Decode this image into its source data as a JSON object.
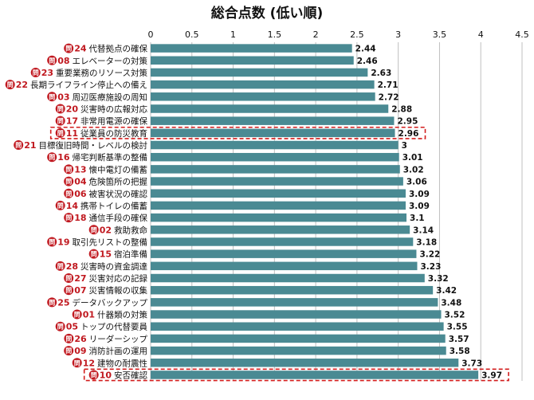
{
  "chart_data": {
    "type": "bar",
    "orientation": "horizontal",
    "title": "総合点数 (低い順)",
    "xlim": [
      0,
      4.5
    ],
    "x_ticks": [
      "0",
      "0.5",
      "1",
      "1.5",
      "2",
      "2.5",
      "3",
      "3.5",
      "4",
      "4.5"
    ],
    "grid": true,
    "bar_color": "#4a8a93",
    "badge_color": "#c0181f",
    "highlight_color": "#d21c1c",
    "badge_prefix": "問",
    "categories": [
      {
        "num": "24",
        "label": "代替拠点の確保",
        "value": 2.44,
        "value_label": "2.44",
        "highlight": false
      },
      {
        "num": "08",
        "label": "エレベーターの対策",
        "value": 2.46,
        "value_label": "2.46",
        "highlight": false
      },
      {
        "num": "23",
        "label": "重要業務のリソース対策",
        "value": 2.63,
        "value_label": "2.63",
        "highlight": false
      },
      {
        "num": "22",
        "label": "長期ライフライン停止への備え",
        "value": 2.71,
        "value_label": "2.71",
        "highlight": false
      },
      {
        "num": "03",
        "label": "周辺医療施設の周知",
        "value": 2.72,
        "value_label": "2.72",
        "highlight": false
      },
      {
        "num": "20",
        "label": "災害時の広報対応",
        "value": 2.88,
        "value_label": "2.88",
        "highlight": false
      },
      {
        "num": "17",
        "label": "非常用電源の確保",
        "value": 2.95,
        "value_label": "2.95",
        "highlight": false
      },
      {
        "num": "11",
        "label": "従業員の防災教育",
        "value": 2.96,
        "value_label": "2.96",
        "highlight": true
      },
      {
        "num": "21",
        "label": "目標復旧時間・レベルの検討",
        "value": 3.0,
        "value_label": "3",
        "highlight": false
      },
      {
        "num": "16",
        "label": "帰宅判断基準の整備",
        "value": 3.01,
        "value_label": "3.01",
        "highlight": false
      },
      {
        "num": "13",
        "label": "懐中電灯の備蓄",
        "value": 3.02,
        "value_label": "3.02",
        "highlight": false
      },
      {
        "num": "04",
        "label": "危険箇所の把握",
        "value": 3.06,
        "value_label": "3.06",
        "highlight": false
      },
      {
        "num": "06",
        "label": "被害状況の確認",
        "value": 3.09,
        "value_label": "3.09",
        "highlight": false
      },
      {
        "num": "14",
        "label": "携帯トイレの備蓄",
        "value": 3.09,
        "value_label": "3.09",
        "highlight": false
      },
      {
        "num": "18",
        "label": "通信手段の確保",
        "value": 3.1,
        "value_label": "3.1",
        "highlight": false
      },
      {
        "num": "02",
        "label": "救助救命",
        "value": 3.14,
        "value_label": "3.14",
        "highlight": false
      },
      {
        "num": "19",
        "label": "取引先リストの整備",
        "value": 3.18,
        "value_label": "3.18",
        "highlight": false
      },
      {
        "num": "15",
        "label": "宿泊準備",
        "value": 3.22,
        "value_label": "3.22",
        "highlight": false
      },
      {
        "num": "28",
        "label": "災害時の資金調達",
        "value": 3.23,
        "value_label": "3.23",
        "highlight": false
      },
      {
        "num": "27",
        "label": "災害対応の記録",
        "value": 3.32,
        "value_label": "3.32",
        "highlight": false
      },
      {
        "num": "07",
        "label": "災害情報の収集",
        "value": 3.42,
        "value_label": "3.42",
        "highlight": false
      },
      {
        "num": "25",
        "label": "データバックアップ",
        "value": 3.48,
        "value_label": "3.48",
        "highlight": false
      },
      {
        "num": "01",
        "label": "什器類の対策",
        "value": 3.52,
        "value_label": "3.52",
        "highlight": false
      },
      {
        "num": "05",
        "label": "トップの代替要員",
        "value": 3.55,
        "value_label": "3.55",
        "highlight": false
      },
      {
        "num": "26",
        "label": "リーダーシップ",
        "value": 3.57,
        "value_label": "3.57",
        "highlight": false
      },
      {
        "num": "09",
        "label": "消防計画の運用",
        "value": 3.58,
        "value_label": "3.58",
        "highlight": false
      },
      {
        "num": "12",
        "label": "建物の耐震性",
        "value": 3.73,
        "value_label": "3.73",
        "highlight": false
      },
      {
        "num": "10",
        "label": "安否確認",
        "value": 3.97,
        "value_label": "3.97",
        "highlight": true
      }
    ]
  }
}
